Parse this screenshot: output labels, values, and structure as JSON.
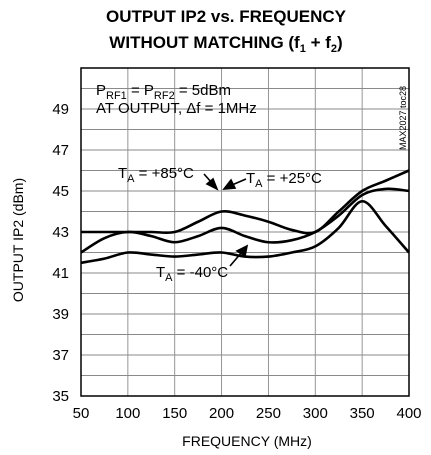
{
  "chart_data": {
    "type": "line",
    "title_line1": "OUTPUT IP2 vs. FREQUENCY",
    "title_line2_main": "WITHOUT MATCHING (f",
    "title_line2_sub1": "1",
    "title_line2_mid": " + f",
    "title_line2_sub2": "2",
    "title_line2_end": ")",
    "xlabel": "FREQUENCY (MHz)",
    "ylabel": "OUTPUT IP2 (dBm)",
    "xlim": [
      50,
      400
    ],
    "ylim": [
      35,
      51
    ],
    "x_ticks": [
      "50",
      "100",
      "150",
      "200",
      "250",
      "300",
      "350",
      "400"
    ],
    "y_ticks": [
      "35",
      "37",
      "39",
      "41",
      "43",
      "45",
      "47",
      "49"
    ],
    "grid": true,
    "conditions": {
      "p": "P",
      "sub1": "RF1",
      "mid": " = P",
      "sub2": "RF2",
      "end": " = 5dBm",
      "line2": "AT OUTPUT, Δf = 1MHz"
    },
    "figure_code": "MAX2027 toc28",
    "series": [
      {
        "label_main": "T",
        "label_sub": "A",
        "label_rest": " = +85°C",
        "x": [
          50,
          75,
          100,
          125,
          150,
          175,
          200,
          225,
          250,
          275,
          300,
          325,
          350,
          375,
          400
        ],
        "y": [
          43.0,
          43.0,
          43.0,
          43.0,
          43.0,
          43.5,
          44.0,
          43.8,
          43.5,
          43.1,
          43.0,
          44.0,
          45.0,
          45.5,
          46.0
        ]
      },
      {
        "label_main": "T",
        "label_sub": "A",
        "label_rest": " = +25°C",
        "x": [
          50,
          75,
          100,
          125,
          150,
          175,
          200,
          225,
          250,
          275,
          300,
          325,
          350,
          375,
          400
        ],
        "y": [
          42.0,
          42.7,
          43.0,
          42.8,
          42.5,
          42.8,
          43.2,
          42.8,
          42.5,
          42.6,
          43.0,
          43.8,
          44.8,
          45.1,
          45.0
        ]
      },
      {
        "label_main": "T",
        "label_sub": "A",
        "label_rest": " = -40°C",
        "x": [
          50,
          75,
          100,
          125,
          150,
          175,
          200,
          225,
          250,
          275,
          300,
          325,
          350,
          375,
          400
        ],
        "y": [
          41.5,
          41.7,
          42.0,
          41.9,
          41.8,
          41.9,
          42.0,
          41.8,
          41.8,
          42.0,
          42.3,
          43.2,
          44.5,
          43.3,
          42.0
        ]
      }
    ]
  }
}
